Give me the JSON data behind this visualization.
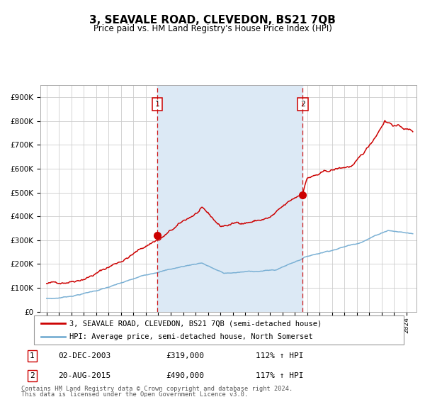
{
  "title": "3, SEAVALE ROAD, CLEVEDON, BS21 7QB",
  "subtitle": "Price paid vs. HM Land Registry's House Price Index (HPI)",
  "legend_line1": "3, SEAVALE ROAD, CLEVEDON, BS21 7QB (semi-detached house)",
  "legend_line2": "HPI: Average price, semi-detached house, North Somerset",
  "transaction1_date": "02-DEC-2003",
  "transaction1_price": 319000,
  "transaction1_price_str": "£319,000",
  "transaction1_pct": "112% ↑ HPI",
  "transaction2_date": "20-AUG-2015",
  "transaction2_price": 490000,
  "transaction2_price_str": "£490,000",
  "transaction2_pct": "117% ↑ HPI",
  "footnote1": "Contains HM Land Registry data © Crown copyright and database right 2024.",
  "footnote2": "This data is licensed under the Open Government Licence v3.0.",
  "red_color": "#cc0000",
  "blue_color": "#7ab0d4",
  "shading_color": "#dce9f5",
  "bg_color": "#ffffff",
  "grid_color": "#cccccc",
  "ylim_max": 950000,
  "ylim_min": 0,
  "transaction1_year": 2003.92,
  "transaction2_year": 2015.63
}
